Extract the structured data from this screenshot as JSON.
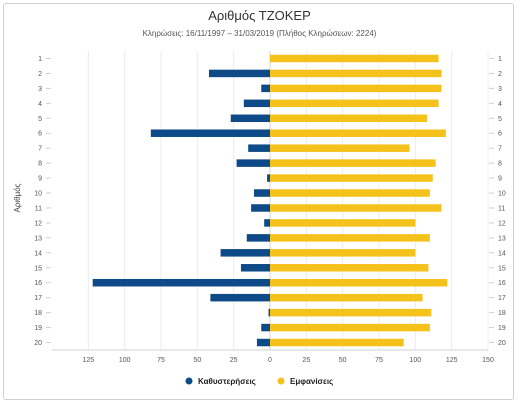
{
  "chart_data": {
    "type": "bar",
    "orientation": "horizontal-diverging",
    "title": "Αριθμός ΤΖΟΚΕΡ",
    "subtitle": "Κληρώσεις: 16/11/1997 – 31/03/2019 (Πλήθος Κληρώσεων: 2224)",
    "ylabel": "Αριθμός",
    "xlabel": "",
    "categories": [
      "1",
      "2",
      "3",
      "4",
      "5",
      "6",
      "7",
      "8",
      "9",
      "10",
      "11",
      "12",
      "13",
      "14",
      "15",
      "16",
      "17",
      "18",
      "19",
      "20"
    ],
    "xlim": [
      -150,
      150
    ],
    "x_ticks": [
      "125",
      "100",
      "75",
      "50",
      "25",
      "0",
      "25",
      "50",
      "75",
      "100",
      "125",
      "150"
    ],
    "x_tick_values": [
      -125,
      -100,
      -75,
      -50,
      -25,
      0,
      25,
      50,
      75,
      100,
      125,
      150
    ],
    "grid": true,
    "legend_position": "bottom-center",
    "series": [
      {
        "name": "Καθυστερήσεις",
        "color": "#0d4a87",
        "values": [
          0,
          42,
          6,
          18,
          27,
          82,
          15,
          23,
          2,
          11,
          13,
          4,
          16,
          34,
          20,
          122,
          41,
          1,
          6,
          9
        ]
      },
      {
        "name": "Εμφανίσεις",
        "color": "#f5c21b",
        "values": [
          116,
          118,
          118,
          116,
          108,
          121,
          96,
          114,
          112,
          110,
          118,
          100,
          110,
          100,
          109,
          122,
          105,
          111,
          110,
          92
        ]
      }
    ]
  }
}
